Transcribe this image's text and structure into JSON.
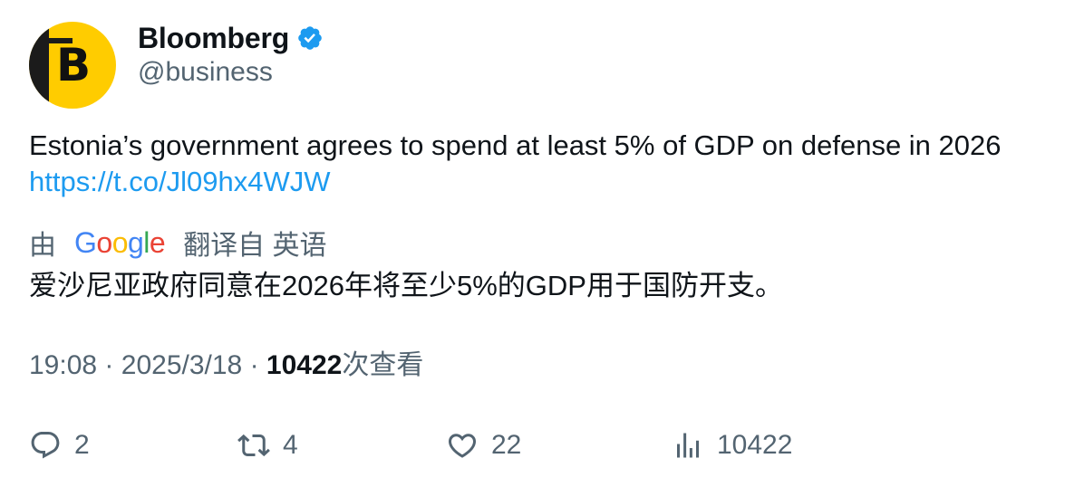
{
  "author": {
    "avatar_letter": "B",
    "name": "Bloomberg",
    "handle": "@business",
    "verified": true
  },
  "tweet": {
    "text": "Estonia’s government agrees to spend at least 5% of GDP on defense in 2026",
    "link": "https://t.co/Jl09hx4WJW"
  },
  "translation": {
    "by_label": "由",
    "provider": "Google",
    "from_label": "翻译自 英语",
    "text": "爱沙尼亚政府同意在2026年将至少5%的GDP用于国防开支。"
  },
  "meta": {
    "time": "19:08",
    "date": "2025/3/18",
    "separator": "·",
    "views": "10422",
    "views_label": "次查看"
  },
  "actions": {
    "replies": "2",
    "reposts": "4",
    "likes": "22",
    "views": "10422"
  },
  "colors": {
    "accent": "#1d9bf0",
    "avatar_bg": "#ffcc00",
    "muted_text": "#536471",
    "text": "#0f1419"
  }
}
